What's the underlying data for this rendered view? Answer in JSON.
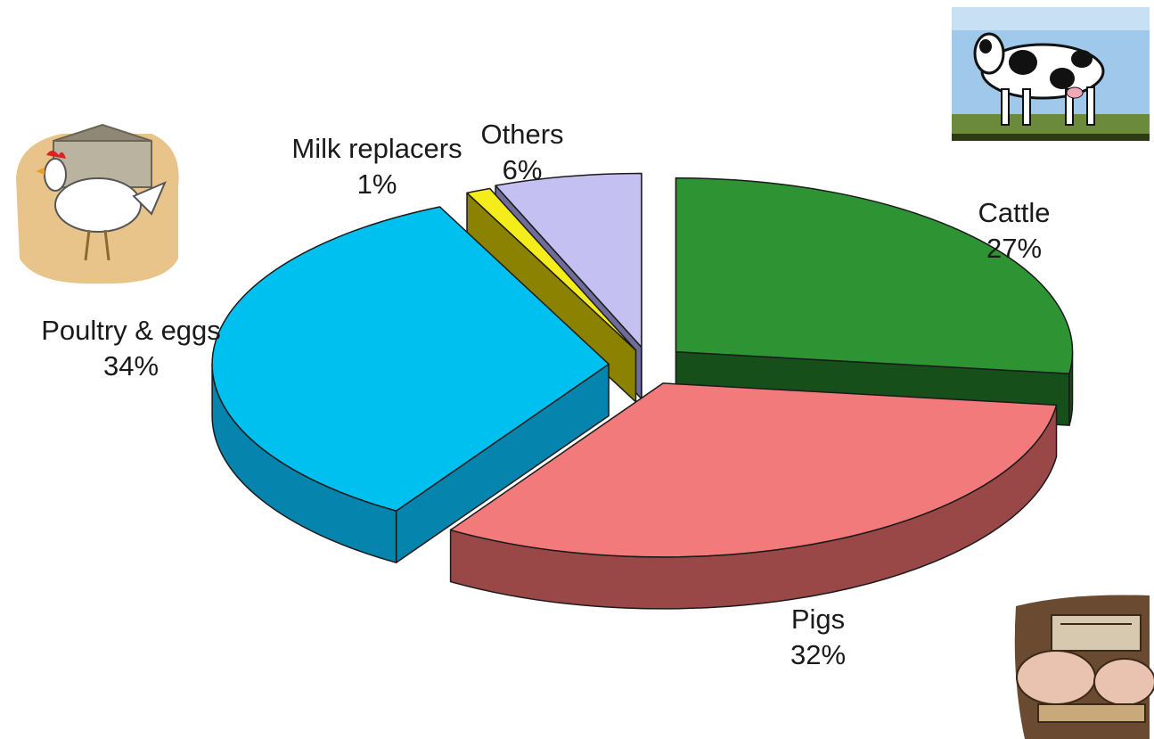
{
  "chart_data": {
    "type": "pie",
    "style": "3d-exploded",
    "slices": [
      {
        "name": "Cattle",
        "value": 27,
        "label": "27%",
        "color": "#2e9433",
        "side_color": "#174f1a"
      },
      {
        "name": "Pigs",
        "value": 32,
        "label": "32%",
        "color": "#f27a7a",
        "side_color": "#9a4747"
      },
      {
        "name": "Poultry & eggs",
        "value": 34,
        "label": "34%",
        "color": "#00c0f0",
        "side_color": "#0584ad"
      },
      {
        "name": "Milk replacers",
        "value": 1,
        "label": "1%",
        "color": "#f5ec1c",
        "side_color": "#8a8200"
      },
      {
        "name": "Others",
        "value": 6,
        "label": "6%",
        "color": "#c4c1f2",
        "side_color": "#6f6c99"
      }
    ]
  },
  "decorations": {
    "cow": "cow-clipart",
    "chicken": "chicken-clipart",
    "pigs": "pigs-clipart"
  }
}
